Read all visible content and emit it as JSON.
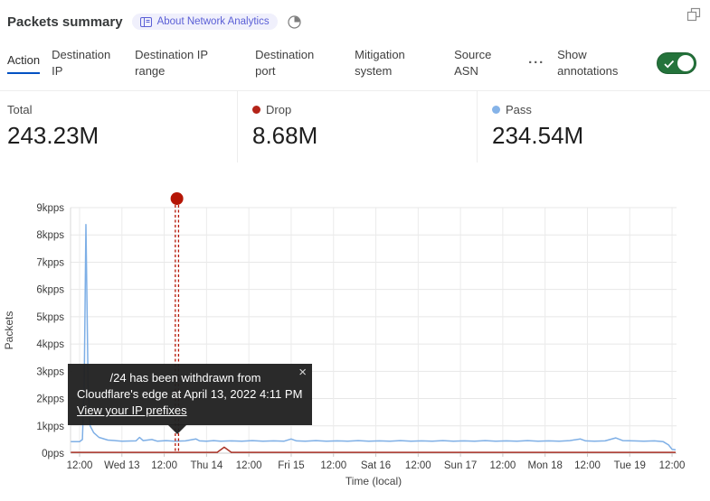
{
  "header": {
    "title": "Packets summary",
    "badge_label": "About Network Analytics",
    "icons": {
      "badge": "book-icon",
      "after_badge": "clock-icon",
      "top_right": "popout-icon"
    }
  },
  "tabs": {
    "items": [
      "Action",
      "Destination IP",
      "Destination IP range",
      "Destination port",
      "Mitigation system",
      "Source ASN"
    ],
    "active": "Action",
    "more_icon": "···",
    "annotations_label": "Show annotations",
    "annotations_toggle_on": true
  },
  "stats": {
    "items": [
      {
        "label": "Total",
        "value": "243.23M",
        "dot_color": null
      },
      {
        "label": "Drop",
        "value": "8.68M",
        "dot_color": "#B42318"
      },
      {
        "label": "Pass",
        "value": "234.54M",
        "dot_color": "#85B3E8"
      }
    ]
  },
  "annotation_tooltip": {
    "line1": "/24 has been withdrawn from",
    "line2": "Cloudflare's edge at April 13, 2022 4:11 PM",
    "link": "View your IP prefixes",
    "close_icon": "×"
  },
  "colors": {
    "accent_blue": "#0051C3",
    "toggle_green": "#24733B",
    "drop_red": "#A93226",
    "pass_blue": "#7EAFE6",
    "annotation_red": "#B51505"
  },
  "chart_data": {
    "type": "line",
    "ylabel": "Packets",
    "xlabel": "Time (local)",
    "ylim": [
      0,
      9
    ],
    "ytick_labels": [
      "9kpps",
      "8kpps",
      "7kpps",
      "6kpps",
      "5kpps",
      "4kpps",
      "3kpps",
      "2kpps",
      "1kpps",
      "0pps"
    ],
    "ytick_values": [
      9,
      8,
      7,
      6,
      5,
      4,
      3,
      2,
      1,
      0
    ],
    "xticks": [
      "12:00",
      "Wed 13",
      "12:00",
      "Thu 14",
      "12:00",
      "Fri 15",
      "12:00",
      "Sat 16",
      "12:00",
      "Sun 17",
      "12:00",
      "Mon 18",
      "12:00",
      "Tue 19",
      "12:00"
    ],
    "xtick_interval_hours": 12,
    "x_start_hours": -2.5,
    "x_end_hours": 169,
    "series": [
      {
        "name": "Pass",
        "color": "#7EAFE6",
        "unit": "kpps",
        "points": [
          [
            -2.5,
            0.42
          ],
          [
            0,
            0.42
          ],
          [
            0.8,
            0.5
          ],
          [
            1.3,
            2.5
          ],
          [
            1.8,
            8.38
          ],
          [
            2.4,
            2.5
          ],
          [
            3,
            1.0
          ],
          [
            4,
            0.75
          ],
          [
            5.5,
            0.58
          ],
          [
            8,
            0.48
          ],
          [
            12,
            0.44
          ],
          [
            16,
            0.45
          ],
          [
            17,
            0.58
          ],
          [
            18,
            0.46
          ],
          [
            20.5,
            0.5
          ],
          [
            22,
            0.44
          ],
          [
            24.5,
            0.46
          ],
          [
            27,
            0.44
          ],
          [
            30,
            0.45
          ],
          [
            33,
            0.52
          ],
          [
            34,
            0.45
          ],
          [
            36,
            0.44
          ],
          [
            38,
            0.46
          ],
          [
            40,
            0.44
          ],
          [
            43,
            0.45
          ],
          [
            46,
            0.44
          ],
          [
            49,
            0.46
          ],
          [
            52,
            0.44
          ],
          [
            55,
            0.45
          ],
          [
            58,
            0.44
          ],
          [
            60,
            0.52
          ],
          [
            61.5,
            0.45
          ],
          [
            64,
            0.44
          ],
          [
            67,
            0.46
          ],
          [
            70,
            0.44
          ],
          [
            73,
            0.45
          ],
          [
            76,
            0.44
          ],
          [
            79,
            0.46
          ],
          [
            82,
            0.44
          ],
          [
            85,
            0.45
          ],
          [
            88,
            0.44
          ],
          [
            91,
            0.46
          ],
          [
            94,
            0.44
          ],
          [
            97,
            0.45
          ],
          [
            100,
            0.44
          ],
          [
            103,
            0.46
          ],
          [
            106,
            0.44
          ],
          [
            109,
            0.45
          ],
          [
            112,
            0.44
          ],
          [
            115,
            0.46
          ],
          [
            118,
            0.44
          ],
          [
            121,
            0.45
          ],
          [
            124,
            0.44
          ],
          [
            127,
            0.46
          ],
          [
            130,
            0.44
          ],
          [
            133,
            0.45
          ],
          [
            136,
            0.44
          ],
          [
            139,
            0.46
          ],
          [
            142,
            0.52
          ],
          [
            143.5,
            0.45
          ],
          [
            146,
            0.44
          ],
          [
            149,
            0.45
          ],
          [
            152,
            0.56
          ],
          [
            154,
            0.46
          ],
          [
            157,
            0.45
          ],
          [
            160,
            0.44
          ],
          [
            163,
            0.45
          ],
          [
            165.5,
            0.42
          ],
          [
            167,
            0.3
          ],
          [
            168,
            0.14
          ],
          [
            169,
            0.12
          ]
        ]
      },
      {
        "name": "Drop",
        "color": "#A93226",
        "unit": "kpps",
        "points": [
          [
            -2.5,
            0.03
          ],
          [
            20,
            0.03
          ],
          [
            30,
            0.03
          ],
          [
            39,
            0.03
          ],
          [
            41,
            0.22
          ],
          [
            43,
            0.03
          ],
          [
            60,
            0.03
          ],
          [
            80,
            0.03
          ],
          [
            100,
            0.03
          ],
          [
            120,
            0.03
          ],
          [
            140,
            0.03
          ],
          [
            160,
            0.03
          ],
          [
            169,
            0.03
          ]
        ]
      }
    ],
    "annotation": {
      "x_hours": 27.6,
      "time": "April 13, 2022 4:11 PM",
      "color": "#B51505"
    }
  }
}
